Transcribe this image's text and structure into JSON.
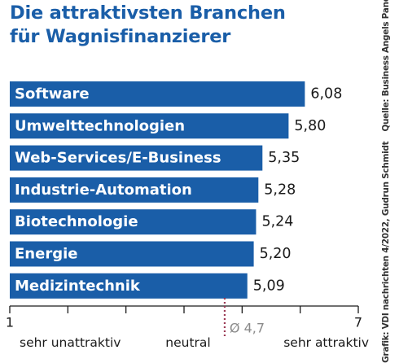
{
  "title": {
    "line1": "Die attraktivsten Branchen",
    "line2": "für Wagnisfinanzierer"
  },
  "source": {
    "credit": "Grafik: VDI nachrichten 4/2022, Gudrun Schmidt",
    "origin": "Quelle: Business Angels Panel"
  },
  "colors": {
    "bar": "#1a5ea8",
    "title": "#1a5ea8",
    "average_marker": "#9b3a55"
  },
  "chart_data": {
    "type": "bar",
    "orientation": "horizontal",
    "categories": [
      "Software",
      "Umwelttechnologien",
      "Web-Services/E-Business",
      "Industrie-Automation",
      "Biotechnologie",
      "Energie",
      "Medizintechnik"
    ],
    "values": [
      6.08,
      5.8,
      5.35,
      5.28,
      5.24,
      5.2,
      5.09
    ],
    "value_labels": [
      "6,08",
      "5,80",
      "5,35",
      "5,28",
      "5,24",
      "5,20",
      "5,09"
    ],
    "xlim": [
      1,
      7
    ],
    "tick_labels": [
      {
        "value": 1,
        "text": "1"
      },
      {
        "value": 7,
        "text": "7"
      }
    ],
    "axis_category_labels": [
      "sehr unattraktiv",
      "neutral",
      "sehr attraktiv"
    ],
    "average": {
      "value": 4.7,
      "label": "Ø 4,7"
    },
    "grid": false,
    "legend": "none"
  }
}
